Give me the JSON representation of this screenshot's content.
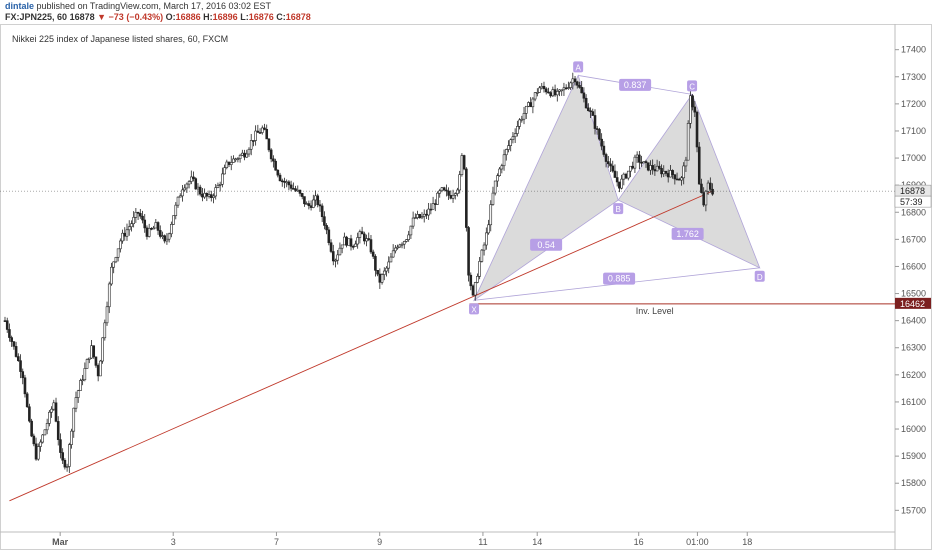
{
  "header": {
    "author": "dintale",
    "published_text": "published on TradingView.com, March 17, 2016 03:02 EST",
    "symbol": "FX:JPN225, 60",
    "last": "16878",
    "change": "−73 (−0.43%)",
    "open_label": "O:",
    "open": "16886",
    "high_label": "H:",
    "high": "16896",
    "low_label": "L:",
    "low": "16876",
    "close_label": "C:",
    "close": "16878"
  },
  "colors": {
    "candle": "#222222",
    "pattern_fill": "#cfcfcf",
    "pattern_line": "#b0a4d8",
    "label_bg": "#b79fe6",
    "trendline": "#c0392b",
    "level_line": "#a93226",
    "price_tag_bg": "#7b1f1f"
  },
  "chart_data": {
    "type": "candlestick",
    "title": "Nikkei 225 index of Japanese listed shares, 60, FXCM",
    "ylim": [
      15620,
      17480
    ],
    "y_ticks": [
      15700,
      15800,
      15900,
      16000,
      16100,
      16200,
      16300,
      16400,
      16500,
      16600,
      16700,
      16800,
      16900,
      17000,
      17100,
      17200,
      17300,
      17400
    ],
    "x_ticks": [
      "Mar",
      "3",
      "7",
      "9",
      "11",
      "14",
      "16",
      "01:00",
      "18"
    ],
    "x_tick_positions": [
      0.062,
      0.189,
      0.305,
      0.421,
      0.537,
      0.598,
      0.712,
      0.778,
      0.834
    ],
    "last_price": "16878",
    "last_price_value": 16878,
    "countdown": "57:39",
    "level_price": "16462",
    "level_value": 16462,
    "level_label": "Inv. Level",
    "price_path": [
      [
        0.0,
        16400
      ],
      [
        0.01,
        16300
      ],
      [
        0.02,
        16200
      ],
      [
        0.028,
        16000
      ],
      [
        0.035,
        15900
      ],
      [
        0.045,
        16000
      ],
      [
        0.055,
        16100
      ],
      [
        0.063,
        15880
      ],
      [
        0.07,
        15870
      ],
      [
        0.078,
        16100
      ],
      [
        0.088,
        16200
      ],
      [
        0.097,
        16300
      ],
      [
        0.105,
        16200
      ],
      [
        0.112,
        16400
      ],
      [
        0.12,
        16600
      ],
      [
        0.13,
        16700
      ],
      [
        0.14,
        16750
      ],
      [
        0.15,
        16800
      ],
      [
        0.16,
        16720
      ],
      [
        0.17,
        16750
      ],
      [
        0.18,
        16680
      ],
      [
        0.19,
        16800
      ],
      [
        0.2,
        16900
      ],
      [
        0.21,
        16920
      ],
      [
        0.22,
        16870
      ],
      [
        0.23,
        16850
      ],
      [
        0.24,
        16900
      ],
      [
        0.25,
        16980
      ],
      [
        0.26,
        17000
      ],
      [
        0.27,
        17020
      ],
      [
        0.28,
        17080
      ],
      [
        0.29,
        17110
      ],
      [
        0.3,
        17000
      ],
      [
        0.31,
        16920
      ],
      [
        0.32,
        16900
      ],
      [
        0.33,
        16870
      ],
      [
        0.34,
        16820
      ],
      [
        0.35,
        16850
      ],
      [
        0.36,
        16750
      ],
      [
        0.37,
        16620
      ],
      [
        0.38,
        16700
      ],
      [
        0.39,
        16680
      ],
      [
        0.4,
        16720
      ],
      [
        0.41,
        16680
      ],
      [
        0.42,
        16540
      ],
      [
        0.43,
        16600
      ],
      [
        0.44,
        16680
      ],
      [
        0.45,
        16700
      ],
      [
        0.46,
        16780
      ],
      [
        0.47,
        16780
      ],
      [
        0.48,
        16820
      ],
      [
        0.49,
        16880
      ],
      [
        0.5,
        16860
      ],
      [
        0.51,
        16900
      ],
      [
        0.515,
        17050
      ],
      [
        0.52,
        16600
      ],
      [
        0.526,
        16480
      ],
      [
        0.532,
        16600
      ],
      [
        0.54,
        16700
      ],
      [
        0.55,
        16900
      ],
      [
        0.56,
        17000
      ],
      [
        0.57,
        17080
      ],
      [
        0.58,
        17150
      ],
      [
        0.59,
        17200
      ],
      [
        0.6,
        17260
      ],
      [
        0.61,
        17250
      ],
      [
        0.62,
        17230
      ],
      [
        0.63,
        17260
      ],
      [
        0.64,
        17300
      ],
      [
        0.65,
        17220
      ],
      [
        0.66,
        17150
      ],
      [
        0.67,
        17050
      ],
      [
        0.68,
        16960
      ],
      [
        0.69,
        16900
      ],
      [
        0.7,
        16950
      ],
      [
        0.71,
        17000
      ],
      [
        0.72,
        16970
      ],
      [
        0.73,
        16960
      ],
      [
        0.74,
        16950
      ],
      [
        0.75,
        16940
      ],
      [
        0.76,
        16920
      ],
      [
        0.765,
        17000
      ],
      [
        0.77,
        17220
      ],
      [
        0.775,
        17180
      ],
      [
        0.78,
        16900
      ],
      [
        0.785,
        16830
      ],
      [
        0.79,
        16900
      ],
      [
        0.795,
        16878
      ]
    ],
    "pattern": {
      "points": [
        {
          "label": "X",
          "x": 0.527,
          "y": 16475
        },
        {
          "label": "A",
          "x": 0.644,
          "y": 17305
        },
        {
          "label": "B",
          "x": 0.689,
          "y": 16845
        },
        {
          "label": "C",
          "x": 0.772,
          "y": 17235
        },
        {
          "label": "D",
          "x": 0.848,
          "y": 16595
        }
      ],
      "ratios": [
        {
          "label": "0.54",
          "x": 0.608,
          "y": 16680
        },
        {
          "label": "0.837",
          "x": 0.708,
          "y": 17270
        },
        {
          "label": "1.762",
          "x": 0.767,
          "y": 16720
        },
        {
          "label": "0.885",
          "x": 0.69,
          "y": 16555
        }
      ]
    },
    "trendline": [
      [
        0.005,
        15735
      ],
      [
        0.795,
        16878
      ]
    ],
    "grid": false
  }
}
